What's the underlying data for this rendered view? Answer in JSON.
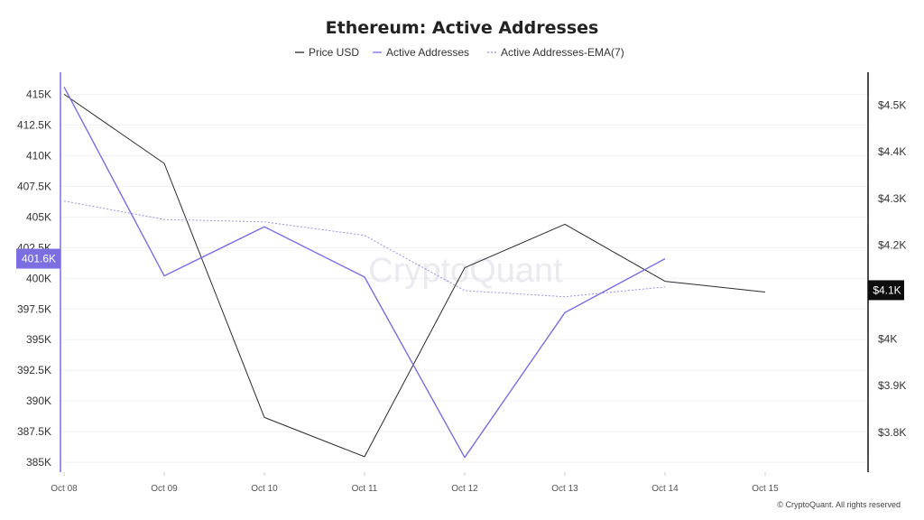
{
  "chart_data": {
    "type": "line",
    "title": "Ethereum: Active Addresses",
    "watermark": "CryptoQuant",
    "footer": "© CryptoQuant. All rights reserved",
    "categories": [
      "Oct 08",
      "Oct 09",
      "Oct 10",
      "Oct 11",
      "Oct 12",
      "Oct 13",
      "Oct 14",
      "Oct 15"
    ],
    "left_axis": {
      "ticks": [
        {
          "value": 415000,
          "label": "415K"
        },
        {
          "value": 412500,
          "label": "412.5K"
        },
        {
          "value": 410000,
          "label": "410K"
        },
        {
          "value": 407500,
          "label": "407.5K"
        },
        {
          "value": 405000,
          "label": "405K"
        },
        {
          "value": 402500,
          "label": "402.5K"
        },
        {
          "value": 400000,
          "label": "400K"
        },
        {
          "value": 397500,
          "label": "397.5K"
        },
        {
          "value": 395000,
          "label": "395K"
        },
        {
          "value": 392500,
          "label": "392.5K"
        },
        {
          "value": 390000,
          "label": "390K"
        },
        {
          "value": 387500,
          "label": "387.5K"
        },
        {
          "value": 385000,
          "label": "385K"
        }
      ],
      "ylim": [
        384200,
        416800
      ],
      "current_label": "401.6K",
      "current_value": 401600,
      "color": "#7b6fe0"
    },
    "right_axis": {
      "ticks": [
        {
          "value": 4500,
          "label": "$4.5K"
        },
        {
          "value": 4400,
          "label": "$4.4K"
        },
        {
          "value": 4300,
          "label": "$4.3K"
        },
        {
          "value": 4200,
          "label": "$4.2K"
        },
        {
          "value": 4000,
          "label": "$4K"
        },
        {
          "value": 3900,
          "label": "$3.9K"
        },
        {
          "value": 3800,
          "label": "$3.8K"
        }
      ],
      "ylim": [
        3715,
        4570
      ],
      "current_label": "$4.1K",
      "current_value": 4104,
      "color": "#111111"
    },
    "series": [
      {
        "name": "Price USD",
        "axis": "right",
        "color": "#2a2a2a",
        "style": "solid",
        "values": [
          4523,
          4375,
          3832,
          3748,
          4152,
          4245,
          4123,
          4100
        ]
      },
      {
        "name": "Active Addresses",
        "axis": "left",
        "color": "#7b6fe0",
        "style": "solid",
        "values": [
          415600,
          400200,
          404200,
          400100,
          385400,
          397200,
          401600,
          null
        ]
      },
      {
        "name": "Active Addresses-EMA(7)",
        "axis": "left",
        "color": "#9a93dd",
        "style": "dotted",
        "values": [
          406300,
          404800,
          404600,
          403500,
          399000,
          398500,
          399300,
          null
        ]
      }
    ],
    "grid": true,
    "legend_position": "top-center"
  }
}
